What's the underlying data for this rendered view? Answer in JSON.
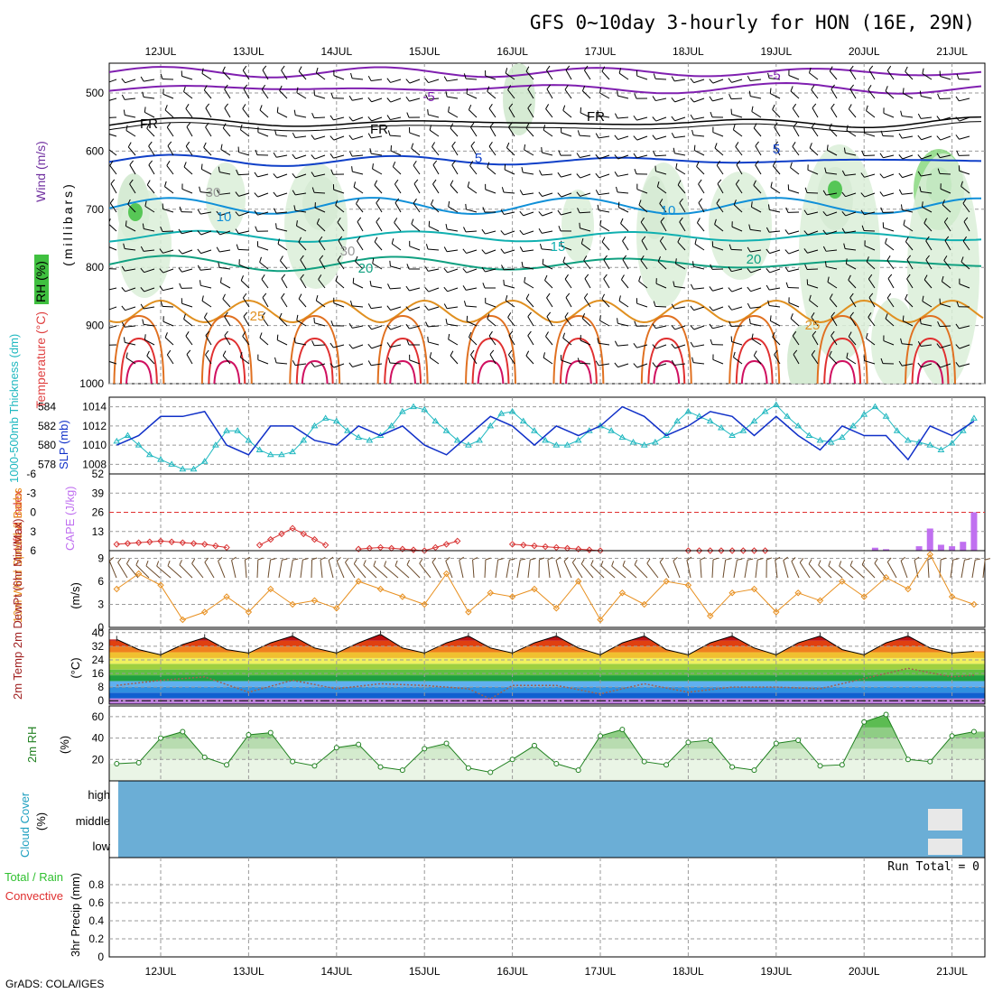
{
  "header": {
    "title": "GFS 0~10day 3-hourly for HON (16E, 29N)",
    "credit": "GrADS: COLA/IGES"
  },
  "colors": {
    "frame": "#000000",
    "grid": "#9a9a9a",
    "thickness": "#20b8c0",
    "slp": "#1030c8",
    "lifted_index": "#d83030",
    "cape": "#c070f0",
    "wind10": "#e89020",
    "barb": "#6b4a2a",
    "rh2m": "#208020",
    "dewpoint": "#a06050",
    "cloud": "#6baed6",
    "precip_total": "#30c030",
    "precip_convective": "#e03030",
    "rh_fill": "#b8dcb0",
    "temp_colors": [
      "#c080e0",
      "#1060d0",
      "#3090e0",
      "#60b0f0",
      "#20a040",
      "#60c040",
      "#a0d040",
      "#f0f060",
      "#f0c030",
      "#f08020",
      "#e04010",
      "#c01010",
      "#800000"
    ]
  },
  "dates": [
    "12JUL",
    "13JUL",
    "14JUL",
    "15JUL",
    "16JUL",
    "17JUL",
    "18JUL",
    "19JUL",
    "20JUL",
    "21JUL"
  ],
  "profile": {
    "ylabel_wind": "Wind (m/s)",
    "ylabel_temp": "Temperature (°C)",
    "ylabel_rh": "RH (%)",
    "ylabel_unit": "(millibars)",
    "levels": [
      500,
      600,
      700,
      800,
      900,
      1000
    ],
    "contour_labels": [
      {
        "text": "-5",
        "color": "#8020b0"
      },
      {
        "text": "FR",
        "color": "#000000"
      },
      {
        "text": "5",
        "color": "#1040c8"
      },
      {
        "text": "10",
        "color": "#1090d8"
      },
      {
        "text": "15",
        "color": "#10b0b0"
      },
      {
        "text": "20",
        "color": "#10a080"
      },
      {
        "text": "25",
        "color": "#e09020"
      },
      {
        "text": "30",
        "color": "#999999"
      }
    ]
  },
  "panels": {
    "thickness_slp": {
      "label_thickness": "1000-500mb Thickness (dm)",
      "label_slp": "SLP (mb)",
      "left_ticks": [
        "584",
        "582",
        "580",
        "578"
      ],
      "right_ticks": [
        "1014",
        "1012",
        "1010",
        "1008"
      ]
    },
    "li_cape": {
      "label_li": "Lifted Index",
      "label_cape": "CAPE (J/kg)",
      "left_ticks": [
        "-6",
        "-3",
        "0",
        "3",
        "6"
      ],
      "right_ticks": [
        "52",
        "39",
        "26",
        "13"
      ]
    },
    "wind10": {
      "label": "10m Wind Speed & Barbs",
      "unit": "(m/s)",
      "ticks": [
        "9",
        "6",
        "3",
        "0"
      ]
    },
    "temp2m": {
      "label": "2m Temp 2m DewPt (6hr Min/Max)",
      "unit": "(°C)",
      "ticks": [
        "40",
        "32",
        "24",
        "16",
        "8",
        "0"
      ]
    },
    "rh2m": {
      "label": "2m RH",
      "unit": "(%)",
      "ticks": [
        "60",
        "40",
        "20"
      ]
    },
    "cloud": {
      "label": "Cloud Cover",
      "unit": "(%)",
      "levels": [
        "high",
        "middle",
        "low"
      ]
    },
    "precip": {
      "label_total": "Total / Rain",
      "label_convective": "Convective",
      "label_axis": "3hr Precip (mm)",
      "run_total": "Run Total = 0",
      "ticks": [
        "0.8",
        "0.6",
        "0.4",
        "0.2",
        "0"
      ]
    }
  },
  "chart_data": [
    {
      "type": "line",
      "name": "1000-500mb Thickness (dm)",
      "x": [
        "11JUL12",
        "11JUL15",
        "11JUL18",
        "11JUL21",
        "12JUL00",
        "12JUL03",
        "12JUL06",
        "12JUL09",
        "12JUL12",
        "12JUL15",
        "12JUL18",
        "12JUL21",
        "13JUL00",
        "13JUL03",
        "13JUL06",
        "13JUL09",
        "13JUL12",
        "13JUL15",
        "13JUL18",
        "13JUL21",
        "14JUL00",
        "14JUL03",
        "14JUL06",
        "14JUL09",
        "14JUL12",
        "14JUL15",
        "14JUL18",
        "14JUL21",
        "15JUL00",
        "15JUL03",
        "15JUL06",
        "15JUL09",
        "15JUL12",
        "15JUL15",
        "15JUL18",
        "15JUL21",
        "16JUL00",
        "16JUL03",
        "16JUL06",
        "16JUL09",
        "16JUL12",
        "16JUL15",
        "16JUL18",
        "16JUL21",
        "17JUL00",
        "17JUL03",
        "17JUL06",
        "17JUL09",
        "17JUL12",
        "17JUL15",
        "17JUL18",
        "17JUL21",
        "18JUL00",
        "18JUL03",
        "18JUL06",
        "18JUL09",
        "18JUL12",
        "18JUL15",
        "18JUL18",
        "18JUL21",
        "19JUL00",
        "19JUL03",
        "19JUL06",
        "19JUL09",
        "19JUL12",
        "19JUL15",
        "19JUL18",
        "19JUL21",
        "20JUL00",
        "20JUL03",
        "20JUL06",
        "20JUL09",
        "20JUL12",
        "20JUL15",
        "20JUL18",
        "20JUL21",
        "21JUL00",
        "21JUL03",
        "21JUL06"
      ],
      "values": [
        580.4,
        581.0,
        580.0,
        579.0,
        578.5,
        578.0,
        577.5,
        577.5,
        578.3,
        580.0,
        581.5,
        581.5,
        580.5,
        579.5,
        579.0,
        579.0,
        579.3,
        580.5,
        582.0,
        582.8,
        582.5,
        581.5,
        580.8,
        580.5,
        581.0,
        582.0,
        583.5,
        584.0,
        583.7,
        582.5,
        581.5,
        580.5,
        580.0,
        580.5,
        582.0,
        583.3,
        583.5,
        582.5,
        581.5,
        580.5,
        580.0,
        580.0,
        580.5,
        581.5,
        582.0,
        581.5,
        580.8,
        580.3,
        580.0,
        580.3,
        581.0,
        582.5,
        583.5,
        583.0,
        582.5,
        581.8,
        581.0,
        581.5,
        582.5,
        583.5,
        584.2,
        583.0,
        582.0,
        581.0,
        580.5,
        580.3,
        580.8,
        582.0,
        583.2,
        584.0,
        583.0,
        581.5,
        580.5,
        580.3,
        580.0,
        579.5,
        580.2,
        581.5,
        582.8
      ],
      "ylim": [
        577,
        585
      ]
    },
    {
      "type": "line",
      "name": "SLP (mb)",
      "x": [
        "11JUL12",
        "11JUL18",
        "12JUL00",
        "12JUL06",
        "12JUL12",
        "12JUL18",
        "13JUL00",
        "13JUL06",
        "13JUL12",
        "13JUL18",
        "14JUL00",
        "14JUL06",
        "14JUL12",
        "14JUL18",
        "15JUL00",
        "15JUL06",
        "15JUL12",
        "15JUL18",
        "16JUL00",
        "16JUL06",
        "16JUL12",
        "16JUL18",
        "17JUL00",
        "17JUL06",
        "17JUL12",
        "17JUL18",
        "18JUL00",
        "18JUL06",
        "18JUL12",
        "18JUL18",
        "19JUL00",
        "19JUL06",
        "19JUL12",
        "19JUL18",
        "20JUL00",
        "20JUL06",
        "20JUL12",
        "20JUL18",
        "21JUL00",
        "21JUL06"
      ],
      "values": [
        1010.0,
        1011.0,
        1013.0,
        1013.0,
        1013.5,
        1010.0,
        1009.0,
        1012.0,
        1012.0,
        1010.5,
        1010.0,
        1012.0,
        1011.0,
        1012.0,
        1010.0,
        1009.0,
        1011.0,
        1013.0,
        1012.0,
        1010.0,
        1012.0,
        1011.0,
        1012.0,
        1014.0,
        1013.0,
        1011.0,
        1012.0,
        1013.5,
        1013.0,
        1011.0,
        1013.0,
        1011.0,
        1009.5,
        1012.0,
        1011.0,
        1011.0,
        1008.5,
        1012.0,
        1011.0,
        1012.5
      ],
      "ylim": [
        1007,
        1015
      ]
    },
    {
      "type": "line",
      "name": "Lifted Index",
      "x": [
        "11JUL12",
        "12JUL00",
        "12JUL12",
        "13JUL00",
        "13JUL12",
        "14JUL00",
        "14JUL12",
        "15JUL00",
        "15JUL12",
        "16JUL00",
        "17JUL00",
        "18JUL00",
        "19JUL00",
        "19JUL12",
        "20JUL00",
        "20JUL12",
        "21JUL00",
        "21JUL06"
      ],
      "values": [
        5.0,
        4.5,
        5.0,
        6.0,
        2.5,
        6.0,
        5.5,
        6.0,
        4.0,
        5.0,
        6.0,
        6.0,
        6.0,
        5.0,
        3.0,
        1.0,
        0.5,
        -1.0
      ],
      "ylim": [
        6,
        -6
      ]
    },
    {
      "type": "bar",
      "name": "CAPE (J/kg)",
      "x": [
        "20JUL03",
        "20JUL06",
        "20JUL15",
        "20JUL18",
        "20JUL21",
        "21JUL00",
        "21JUL03",
        "21JUL06"
      ],
      "values": [
        2,
        1,
        3,
        15,
        4,
        3,
        6,
        26
      ],
      "ylim": [
        0,
        52
      ]
    },
    {
      "type": "line",
      "name": "10m Wind Speed (m/s)",
      "x": [
        "11JUL12",
        "11JUL18",
        "12JUL00",
        "12JUL06",
        "12JUL12",
        "12JUL18",
        "13JUL00",
        "13JUL06",
        "13JUL12",
        "13JUL18",
        "14JUL00",
        "14JUL06",
        "14JUL12",
        "14JUL18",
        "15JUL00",
        "15JUL06",
        "15JUL12",
        "15JUL18",
        "16JUL00",
        "16JUL06",
        "16JUL12",
        "16JUL18",
        "17JUL00",
        "17JUL06",
        "17JUL12",
        "17JUL18",
        "18JUL00",
        "18JUL06",
        "18JUL12",
        "18JUL18",
        "19JUL00",
        "19JUL06",
        "19JUL12",
        "19JUL18",
        "20JUL00",
        "20JUL06",
        "20JUL12",
        "20JUL18",
        "21JUL00",
        "21JUL06"
      ],
      "values": [
        5.0,
        7.0,
        5.5,
        1.0,
        2.0,
        4.0,
        2.0,
        5.0,
        3.0,
        3.5,
        2.5,
        6.0,
        5.0,
        4.0,
        3.0,
        7.0,
        2.0,
        4.5,
        4.0,
        5.0,
        2.5,
        6.0,
        1.0,
        4.5,
        3.0,
        6.0,
        5.5,
        1.5,
        4.5,
        5.0,
        2.0,
        4.5,
        3.5,
        6.0,
        4.0,
        6.5,
        5.0,
        9.5,
        4.0,
        3.0
      ],
      "ylim": [
        0,
        10
      ]
    },
    {
      "type": "area",
      "name": "2m Temp (°C)",
      "x": [
        "11JUL12",
        "11JUL18",
        "12JUL00",
        "12JUL06",
        "12JUL12",
        "12JUL18",
        "13JUL00",
        "13JUL06",
        "13JUL12",
        "13JUL18",
        "14JUL00",
        "14JUL06",
        "14JUL12",
        "14JUL18",
        "15JUL00",
        "15JUL06",
        "15JUL12",
        "15JUL18",
        "16JUL00",
        "16JUL06",
        "16JUL12",
        "16JUL18",
        "17JUL00",
        "17JUL06",
        "17JUL12",
        "17JUL18",
        "18JUL00",
        "18JUL06",
        "18JUL12",
        "18JUL18",
        "19JUL00",
        "19JUL06",
        "19JUL12",
        "19JUL18",
        "20JUL00",
        "20JUL06",
        "20JUL12",
        "20JUL18",
        "21JUL00",
        "21JUL06"
      ],
      "values": [
        36,
        30,
        27,
        33,
        37,
        30,
        28,
        34,
        38,
        31,
        28,
        34,
        39,
        31,
        28,
        34,
        38,
        31,
        28,
        34,
        38,
        31,
        27,
        34,
        38,
        30,
        27,
        34,
        38,
        31,
        27,
        34,
        38,
        30,
        27,
        34,
        38,
        31,
        28,
        29
      ],
      "ylim": [
        -2,
        42
      ]
    },
    {
      "type": "line",
      "name": "2m DewPt (°C)",
      "x": [
        "11JUL12",
        "12JUL00",
        "12JUL12",
        "13JUL00",
        "13JUL12",
        "14JUL00",
        "14JUL12",
        "15JUL00",
        "15JUL12",
        "15JUL18",
        "16JUL00",
        "16JUL12",
        "17JUL00",
        "17JUL12",
        "18JUL00",
        "18JUL12",
        "19JUL00",
        "19JUL12",
        "20JUL00",
        "20JUL12",
        "21JUL00",
        "21JUL06"
      ],
      "values": [
        9,
        12,
        14,
        5,
        12,
        7,
        10,
        9,
        7,
        1,
        9,
        9,
        4,
        10,
        5,
        8,
        8,
        7,
        13,
        19,
        14,
        15
      ],
      "ylim": [
        -2,
        42
      ]
    },
    {
      "type": "area",
      "name": "2m RH (%)",
      "x": [
        "11JUL12",
        "11JUL18",
        "12JUL00",
        "12JUL06",
        "12JUL12",
        "12JUL18",
        "13JUL00",
        "13JUL06",
        "13JUL12",
        "13JUL18",
        "14JUL00",
        "14JUL06",
        "14JUL12",
        "14JUL18",
        "15JUL00",
        "15JUL06",
        "15JUL12",
        "15JUL18",
        "16JUL00",
        "16JUL06",
        "16JUL12",
        "16JUL18",
        "17JUL00",
        "17JUL06",
        "17JUL12",
        "17JUL18",
        "18JUL00",
        "18JUL06",
        "18JUL12",
        "18JUL18",
        "19JUL00",
        "19JUL06",
        "19JUL12",
        "19JUL18",
        "20JUL00",
        "20JUL06",
        "20JUL12",
        "20JUL18",
        "21JUL00",
        "21JUL06"
      ],
      "values": [
        16,
        17,
        40,
        46,
        22,
        15,
        43,
        45,
        18,
        14,
        31,
        34,
        13,
        10,
        30,
        35,
        12,
        8,
        20,
        33,
        16,
        10,
        42,
        48,
        18,
        15,
        36,
        38,
        13,
        10,
        35,
        38,
        14,
        15,
        55,
        62,
        20,
        18,
        42,
        46
      ],
      "ylim": [
        0,
        70
      ]
    },
    {
      "type": "bar",
      "name": "3hr Precip (mm)",
      "x": [],
      "values": [],
      "ylim": [
        0,
        1
      ]
    }
  ]
}
